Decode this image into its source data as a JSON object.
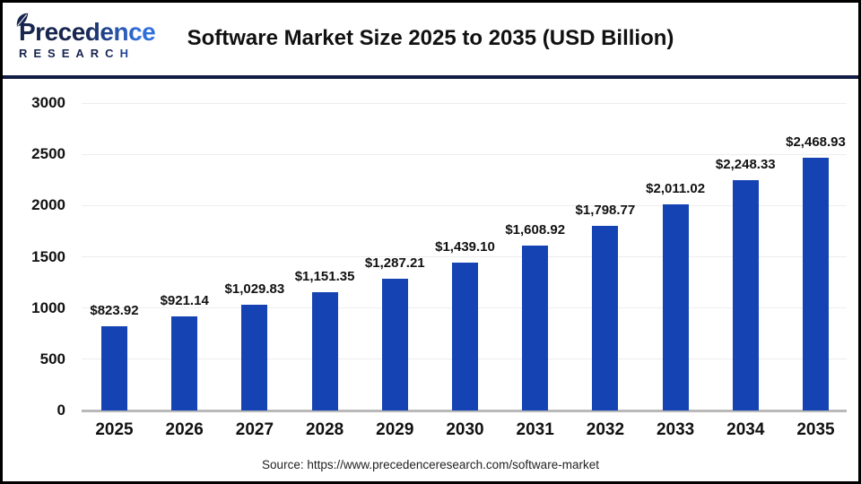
{
  "header": {
    "logo": {
      "brand": "Precedence",
      "subtext": "RESEARCH"
    },
    "title": "Software Market Size 2025 to 2035 (USD Billion)"
  },
  "footer": {
    "source": "Source: https://www.precedenceresearch.com/software-market"
  },
  "colors": {
    "bar": "#1543b3",
    "logo_navy": "#17254f",
    "logo_blue": "#2e6be6",
    "divider": "#131c44",
    "gridline": "#ededed",
    "axis_line": "#b9b9b9",
    "text": "#111111"
  },
  "chart_data": {
    "type": "bar",
    "title": "Software Market Size 2025 to 2035 (USD Billion)",
    "unit": "USD Billion",
    "categories": [
      "2025",
      "2026",
      "2027",
      "2028",
      "2029",
      "2030",
      "2031",
      "2032",
      "2033",
      "2034",
      "2035"
    ],
    "values": [
      823.92,
      921.14,
      1029.83,
      1151.35,
      1287.21,
      1439.1,
      1608.92,
      1798.77,
      2011.02,
      2248.33,
      2468.93
    ],
    "value_labels": [
      "$823.92",
      "$921.14",
      "$1,029.83",
      "$1,151.35",
      "$1,287.21",
      "$1,439.10",
      "$1,608.92",
      "$1,798.77",
      "$2,011.02",
      "$2,248.33",
      "$2,468.93"
    ],
    "xlabel": "",
    "ylabel": "",
    "ylim": [
      0,
      3000
    ],
    "yticks": [
      0,
      500,
      1000,
      1500,
      2000,
      2500,
      3000
    ],
    "grid": true,
    "legend": false,
    "bar_color": "#1543b3",
    "source": "https://www.precedenceresearch.com/software-market"
  }
}
